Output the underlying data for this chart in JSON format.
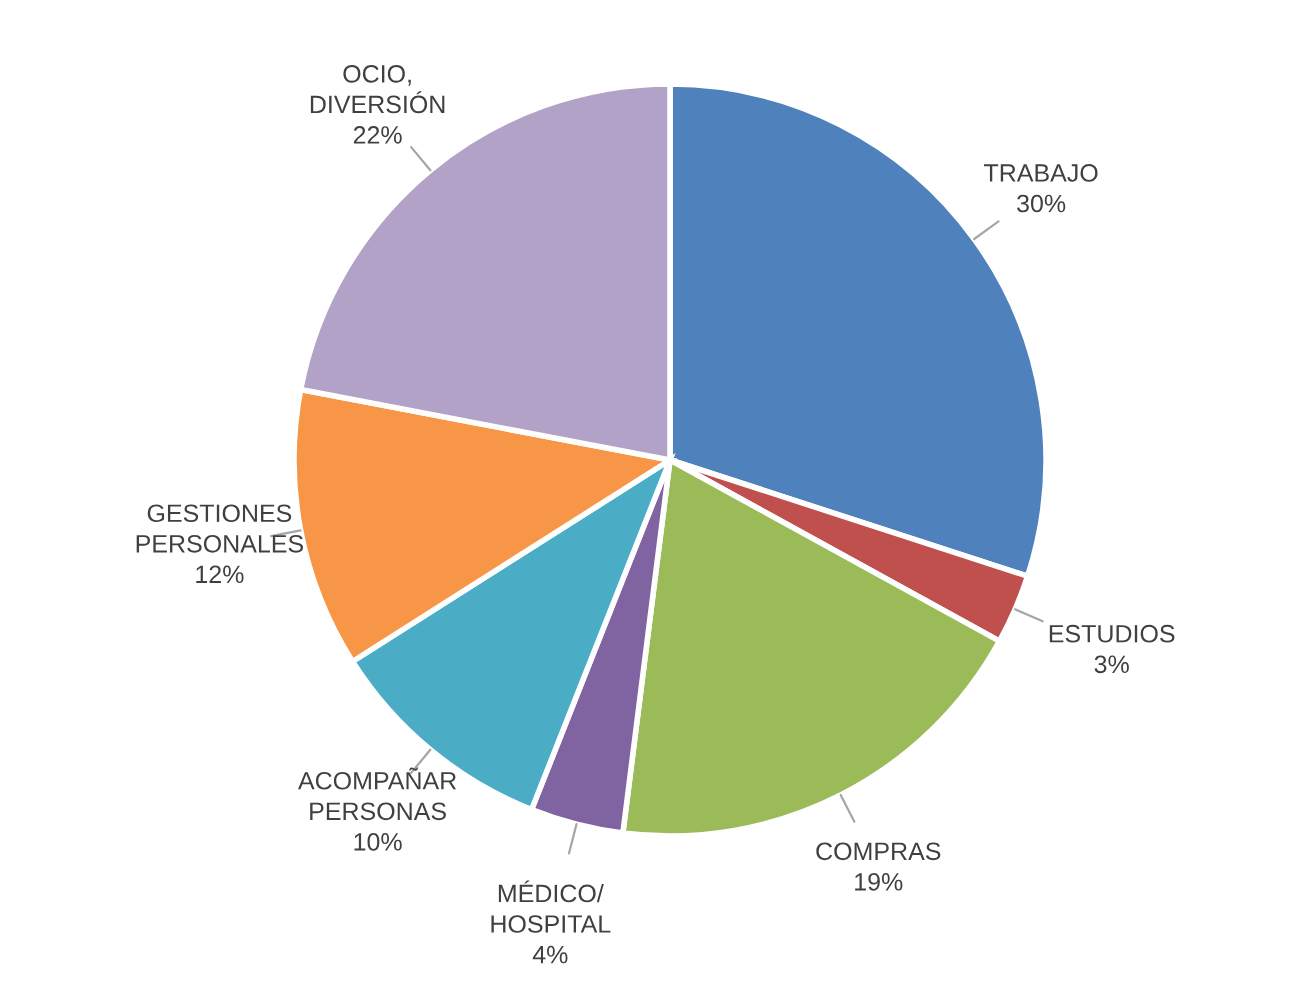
{
  "chart_data": {
    "type": "pie",
    "categories": [
      "TRABAJO",
      "ESTUDIOS",
      "COMPRAS",
      "MÉDICO/\nHOSPITAL",
      "ACOMPAÑAR\nPERSONAS",
      "GESTIONES\nPERSONALES",
      "OCIO,\nDIVERSIÓN"
    ],
    "values": [
      30,
      3,
      19,
      4,
      10,
      12,
      22
    ],
    "value_labels": [
      "30%",
      "3%",
      "19%",
      "4%",
      "10%",
      "12%",
      "22%"
    ],
    "colors": [
      "#4f81bd",
      "#c0504d",
      "#9bbb59",
      "#8064a2",
      "#4bacc6",
      "#f79646",
      "#b3a2c7"
    ]
  }
}
